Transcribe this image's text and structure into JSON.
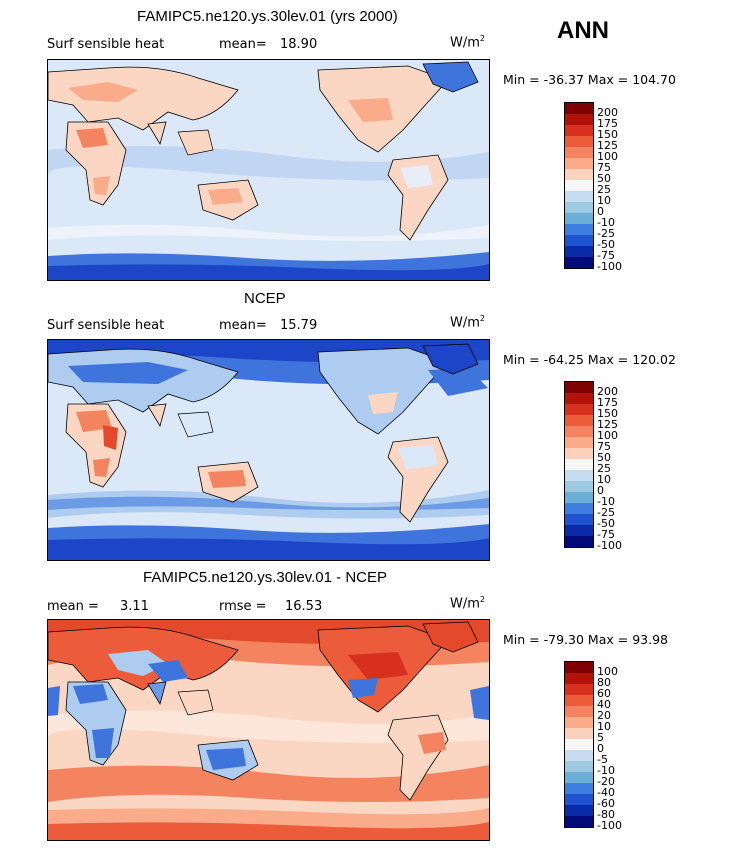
{
  "season": "ANN",
  "panels": [
    {
      "title": "FAMIPC5.ne120.ys.30lev.01 (yrs 2000)",
      "variable": "Surf sensible heat",
      "stat_label": "mean=",
      "stat_value": "18.90",
      "stat2_label": "",
      "stat2_value": "",
      "units": "W/m",
      "units_sup": "2",
      "min_label": "Min =",
      "min_value": "-36.37",
      "max_label": "Max =",
      "max_value": "104.70",
      "levels": [
        "200",
        "175",
        "150",
        "125",
        "100",
        "75",
        "50",
        "25",
        "10",
        "0",
        "-10",
        "-25",
        "-50",
        "-75",
        "-100"
      ]
    },
    {
      "title": "NCEP",
      "variable": "Surf sensible heat",
      "stat_label": "mean=",
      "stat_value": "15.79",
      "stat2_label": "",
      "stat2_value": "",
      "units": "W/m",
      "units_sup": "2",
      "min_label": "Min =",
      "min_value": "-64.25",
      "max_label": "Max =",
      "max_value": "120.02",
      "levels": [
        "200",
        "175",
        "150",
        "125",
        "100",
        "75",
        "50",
        "25",
        "10",
        "0",
        "-10",
        "-25",
        "-50",
        "-75",
        "-100"
      ]
    },
    {
      "title": "FAMIPC5.ne120.ys.30lev.01 - NCEP",
      "variable": "",
      "stat_label": "mean =",
      "stat_value": "3.11",
      "stat2_label": "rmse =",
      "stat2_value": "16.53",
      "units": "W/m",
      "units_sup": "2",
      "min_label": "Min =",
      "min_value": "-79.30",
      "max_label": "Max =",
      "max_value": "93.98",
      "levels": [
        "100",
        "80",
        "60",
        "40",
        "20",
        "10",
        "5",
        "0",
        "-5",
        "-10",
        "-20",
        "-40",
        "-60",
        "-80",
        "-100"
      ]
    }
  ],
  "colors": {
    "palette": [
      "#7f0000",
      "#b3120a",
      "#d7301f",
      "#ec5b3a",
      "#f4845f",
      "#f9ab8a",
      "#fdd2bc",
      "#f7f7f7",
      "#c6dbef",
      "#9ecae1",
      "#6baed6",
      "#3d7ee0",
      "#1f52d0",
      "#0b2aa8",
      "#050a7a"
    ],
    "ocean_light": "#dbe8f8",
    "land": "#fbd6c2",
    "blue_mid": "#aecbf0",
    "blue_strong": "#3f74dd",
    "blue_deep": "#1c45c8",
    "red_mid": "#f4845f",
    "red_strong": "#e34a2c"
  },
  "chart_data": [
    {
      "type": "heatmap",
      "title": "FAMIPC5.ne120.ys.30lev.01 (yrs 2000)",
      "variable": "Surf sensible heat",
      "units": "W/m^2",
      "mean": 18.9,
      "min": -36.37,
      "max": 104.7,
      "contour_levels": [
        -100,
        -75,
        -50,
        -25,
        -10,
        0,
        10,
        25,
        50,
        75,
        100,
        125,
        150,
        175,
        200
      ]
    },
    {
      "type": "heatmap",
      "title": "NCEP",
      "variable": "Surf sensible heat",
      "units": "W/m^2",
      "mean": 15.79,
      "min": -64.25,
      "max": 120.02,
      "contour_levels": [
        -100,
        -75,
        -50,
        -25,
        -10,
        0,
        10,
        25,
        50,
        75,
        100,
        125,
        150,
        175,
        200
      ]
    },
    {
      "type": "heatmap",
      "title": "FAMIPC5.ne120.ys.30lev.01 - NCEP",
      "units": "W/m^2",
      "mean": 3.11,
      "rmse": 16.53,
      "min": -79.3,
      "max": 93.98,
      "contour_levels": [
        -100,
        -80,
        -60,
        -40,
        -20,
        -10,
        -5,
        0,
        5,
        10,
        20,
        40,
        60,
        80,
        100
      ]
    }
  ]
}
